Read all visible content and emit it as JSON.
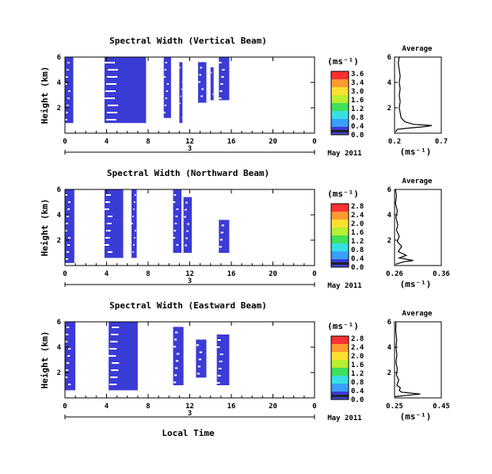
{
  "chart_data": [
    {
      "type": "heatmap",
      "title": "Spectral Width (Vertical Beam)",
      "ylabel": "Height (km)",
      "x_ticks": [
        "0",
        "4",
        "8",
        "12",
        "16",
        "20",
        "0"
      ],
      "y_ticks": [
        "6",
        "4",
        "2"
      ],
      "day_label": "3",
      "date_label": "May 2011",
      "xlim": [
        0,
        24
      ],
      "ylim": [
        0,
        6
      ],
      "colorbar_unit": "(ms⁻¹)",
      "colorbar_ticks": [
        "3.6",
        "3.4",
        "3.0",
        "1.6",
        "1.2",
        "0.8",
        "0.4",
        "0.0"
      ],
      "dominant_value_band": "0.0-0.4",
      "cells": [
        {
          "x0": 0.0,
          "x1": 0.8,
          "y0": 0.8,
          "y1": 6.0
        },
        {
          "x0": 3.8,
          "x1": 7.8,
          "y0": 0.8,
          "y1": 6.0
        },
        {
          "x0": 9.5,
          "x1": 10.2,
          "y0": 1.2,
          "y1": 6.0
        },
        {
          "x0": 11.0,
          "x1": 11.3,
          "y0": 0.8,
          "y1": 5.6
        },
        {
          "x0": 12.8,
          "x1": 13.6,
          "y0": 2.4,
          "y1": 5.6
        },
        {
          "x0": 14.0,
          "x1": 14.3,
          "y0": 2.6,
          "y1": 5.2
        },
        {
          "x0": 14.8,
          "x1": 15.8,
          "y0": 2.6,
          "y1": 6.0
        }
      ],
      "average_panel": {
        "title": "Average",
        "xlabel": "(ms⁻¹)",
        "x_ticks": [
          "0.2",
          "0.7"
        ],
        "xlim": [
          0.2,
          0.7
        ],
        "y_ticks": [
          "6",
          "4",
          "2"
        ],
        "ylim": [
          0,
          6
        ],
        "profile": [
          [
            0.21,
            0.1
          ],
          [
            0.23,
            0.3
          ],
          [
            0.35,
            0.4
          ],
          [
            0.5,
            0.5
          ],
          [
            0.6,
            0.6
          ],
          [
            0.4,
            0.7
          ],
          [
            0.31,
            0.9
          ],
          [
            0.27,
            1.2
          ],
          [
            0.26,
            1.6
          ],
          [
            0.25,
            2.0
          ],
          [
            0.26,
            2.5
          ],
          [
            0.25,
            3.0
          ],
          [
            0.26,
            3.5
          ],
          [
            0.25,
            4.0
          ],
          [
            0.26,
            4.5
          ],
          [
            0.25,
            5.0
          ],
          [
            0.24,
            5.5
          ],
          [
            0.25,
            6.0
          ]
        ]
      }
    },
    {
      "type": "heatmap",
      "title": "Spectral Width (Northward Beam)",
      "ylabel": "Height (km)",
      "x_ticks": [
        "0",
        "4",
        "8",
        "12",
        "16",
        "20",
        "0"
      ],
      "y_ticks": [
        "6",
        "4",
        "2"
      ],
      "day_label": "3",
      "date_label": "May 2011",
      "xlim": [
        0,
        24
      ],
      "ylim": [
        0,
        6
      ],
      "colorbar_unit": "(ms⁻¹)",
      "colorbar_ticks": [
        "2.8",
        "2.4",
        "2.0",
        "1.6",
        "1.2",
        "0.8",
        "0.4",
        "0.0"
      ],
      "dominant_value_band": "0.0-0.4",
      "cells": [
        {
          "x0": 0.0,
          "x1": 0.9,
          "y0": 0.2,
          "y1": 6.0
        },
        {
          "x0": 3.8,
          "x1": 5.6,
          "y0": 0.6,
          "y1": 6.0
        },
        {
          "x0": 6.4,
          "x1": 6.9,
          "y0": 0.6,
          "y1": 6.0
        },
        {
          "x0": 10.4,
          "x1": 11.2,
          "y0": 1.0,
          "y1": 6.0
        },
        {
          "x0": 11.4,
          "x1": 12.2,
          "y0": 1.0,
          "y1": 5.4
        },
        {
          "x0": 14.8,
          "x1": 15.8,
          "y0": 1.0,
          "y1": 3.6
        }
      ],
      "average_panel": {
        "title": "Average",
        "xlabel": "(ms⁻¹)",
        "x_ticks": [
          "0.26",
          "0.36"
        ],
        "xlim": [
          0.26,
          0.36
        ],
        "y_ticks": [
          "6",
          "4",
          "2"
        ],
        "ylim": [
          0,
          6
        ],
        "profile": [
          [
            0.262,
            0.1
          ],
          [
            0.28,
            0.3
          ],
          [
            0.3,
            0.4
          ],
          [
            0.27,
            0.6
          ],
          [
            0.285,
            0.8
          ],
          [
            0.268,
            1.1
          ],
          [
            0.275,
            1.5
          ],
          [
            0.266,
            1.9
          ],
          [
            0.27,
            2.3
          ],
          [
            0.264,
            2.8
          ],
          [
            0.267,
            3.2
          ],
          [
            0.263,
            3.8
          ],
          [
            0.266,
            4.3
          ],
          [
            0.262,
            4.9
          ],
          [
            0.264,
            5.5
          ],
          [
            0.262,
            6.0
          ]
        ]
      }
    },
    {
      "type": "heatmap",
      "title": "Spectral Width (Eastward Beam)",
      "ylabel": "Height (km)",
      "x_ticks": [
        "0",
        "4",
        "8",
        "12",
        "16",
        "20",
        "0"
      ],
      "y_ticks": [
        "6",
        "4",
        "2"
      ],
      "day_label": "3",
      "date_label": "May 2011",
      "xlabel": "Local Time",
      "xlim": [
        0,
        24
      ],
      "ylim": [
        0,
        6
      ],
      "colorbar_unit": "(ms⁻¹)",
      "colorbar_ticks": [
        "2.8",
        "2.4",
        "2.0",
        "1.6",
        "1.2",
        "0.8",
        "0.4",
        "0.0"
      ],
      "dominant_value_band": "0.0-0.4",
      "cells": [
        {
          "x0": 0.0,
          "x1": 1.0,
          "y0": 0.6,
          "y1": 6.0
        },
        {
          "x0": 4.2,
          "x1": 7.0,
          "y0": 0.6,
          "y1": 6.0
        },
        {
          "x0": 10.4,
          "x1": 11.4,
          "y0": 1.0,
          "y1": 5.6
        },
        {
          "x0": 12.6,
          "x1": 13.6,
          "y0": 1.6,
          "y1": 4.6
        },
        {
          "x0": 14.6,
          "x1": 15.8,
          "y0": 1.0,
          "y1": 5.0
        }
      ],
      "average_panel": {
        "title": "Average",
        "xlabel": "(ms⁻¹)",
        "x_ticks": [
          "0.25",
          "0.45"
        ],
        "xlim": [
          0.25,
          0.45
        ],
        "y_ticks": [
          "6",
          "4",
          "2"
        ],
        "ylim": [
          0,
          6
        ],
        "profile": [
          [
            0.252,
            0.1
          ],
          [
            0.3,
            0.2
          ],
          [
            0.36,
            0.3
          ],
          [
            0.28,
            0.45
          ],
          [
            0.27,
            0.6
          ],
          [
            0.275,
            0.8
          ],
          [
            0.26,
            1.0
          ],
          [
            0.268,
            1.4
          ],
          [
            0.258,
            1.8
          ],
          [
            0.262,
            2.3
          ],
          [
            0.256,
            2.8
          ],
          [
            0.26,
            3.4
          ],
          [
            0.256,
            4.0
          ],
          [
            0.259,
            4.6
          ],
          [
            0.255,
            5.3
          ],
          [
            0.256,
            6.0
          ]
        ]
      }
    }
  ],
  "colors": {
    "low": "#3b3bd6",
    "scale": [
      "#3b3bd6",
      "#3aa0ff",
      "#36e0e0",
      "#3ee05a",
      "#b8ef30",
      "#ffe030",
      "#ff9a30",
      "#ff3030"
    ],
    "bottom_band": "#222222"
  }
}
